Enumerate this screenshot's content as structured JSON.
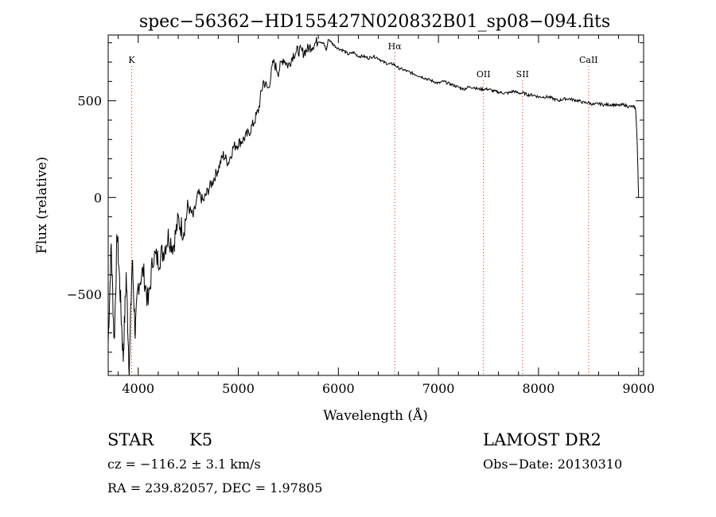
{
  "chart_data": {
    "type": "line",
    "title": "spec−56362−HD155427N020832B01_sp08−094.fits",
    "xlabel": "Wavelength (Å)",
    "ylabel": "Flux (relative)",
    "xlim": [
      3700,
      9050
    ],
    "ylim": [
      -920,
      840
    ],
    "xticks": [
      4000,
      5000,
      6000,
      7000,
      8000,
      9000
    ],
    "xtick_labels": [
      "4000",
      "5000",
      "6000",
      "7000",
      "8000",
      "9000"
    ],
    "yticks": [
      -500,
      0,
      500
    ],
    "ytick_labels": [
      "−500",
      "0",
      "500"
    ],
    "grid": false,
    "lines": [
      {
        "name": "K",
        "x": 3934
      },
      {
        "name": "Hα",
        "x": 6563
      },
      {
        "name": "OII",
        "x": 7450
      },
      {
        "name": "SII",
        "x": 7840
      },
      {
        "name": "CaII",
        "x": 8500
      }
    ],
    "spectrum": {
      "x": [
        3700,
        3730,
        3760,
        3790,
        3820,
        3850,
        3880,
        3910,
        3940,
        3970,
        4000,
        4050,
        4100,
        4150,
        4200,
        4250,
        4300,
        4350,
        4400,
        4450,
        4500,
        4550,
        4600,
        4650,
        4700,
        4750,
        4800,
        4850,
        4900,
        4950,
        5000,
        5050,
        5100,
        5150,
        5200,
        5250,
        5300,
        5350,
        5400,
        5450,
        5500,
        5550,
        5600,
        5650,
        5700,
        5750,
        5800,
        5850,
        5880,
        5900,
        5950,
        6000,
        6050,
        6100,
        6150,
        6200,
        6250,
        6300,
        6350,
        6400,
        6450,
        6500,
        6550,
        6600,
        6650,
        6700,
        6750,
        6800,
        6850,
        6900,
        6950,
        7000,
        7050,
        7100,
        7150,
        7200,
        7250,
        7300,
        7350,
        7400,
        7450,
        7500,
        7550,
        7600,
        7650,
        7700,
        7750,
        7800,
        7850,
        7900,
        7950,
        8000,
        8050,
        8100,
        8150,
        8200,
        8250,
        8300,
        8350,
        8400,
        8450,
        8500,
        8550,
        8600,
        8650,
        8700,
        8750,
        8800,
        8850,
        8900,
        8950,
        8970,
        8985,
        9000
      ],
      "y": [
        -750,
        -250,
        -750,
        -180,
        -500,
        -830,
        -400,
        -890,
        -320,
        -700,
        -450,
        -380,
        -550,
        -300,
        -320,
        -280,
        -200,
        -250,
        -120,
        -170,
        -50,
        -100,
        20,
        -20,
        40,
        90,
        150,
        220,
        180,
        260,
        280,
        300,
        330,
        380,
        450,
        600,
        560,
        700,
        650,
        720,
        680,
        740,
        760,
        750,
        770,
        790,
        810,
        800,
        760,
        820,
        790,
        770,
        760,
        740,
        750,
        730,
        730,
        720,
        730,
        720,
        700,
        690,
        690,
        670,
        660,
        650,
        640,
        630,
        620,
        610,
        600,
        590,
        600,
        590,
        580,
        570,
        560,
        570,
        570,
        560,
        560,
        560,
        550,
        545,
        540,
        540,
        550,
        540,
        540,
        530,
        530,
        520,
        520,
        520,
        510,
        500,
        510,
        510,
        505,
        500,
        490,
        490,
        480,
        485,
        480,
        480,
        480,
        475,
        480,
        470,
        470,
        460,
        300,
        0
      ]
    }
  },
  "info": {
    "object_class": "STAR",
    "subclass": "K5",
    "survey": "LAMOST DR2",
    "redshift": "cz = −116.2 ± 3.1 km/s",
    "obs_date": "Obs−Date: 20130310",
    "coords": "RA = 239.82057, DEC =   1.97805"
  }
}
